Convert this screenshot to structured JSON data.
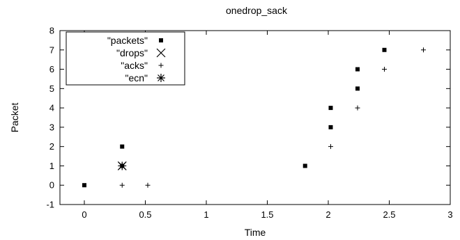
{
  "chart_data": {
    "type": "scatter",
    "title": "onedrop_sack",
    "xlabel": "Time",
    "ylabel": "Packet",
    "xlim": [
      -0.2,
      3
    ],
    "ylim": [
      -1,
      8
    ],
    "x_ticks": [
      0,
      0.5,
      1,
      1.5,
      2,
      2.5,
      3
    ],
    "x_tick_labels": [
      "0",
      "0.5",
      "1",
      "1.5",
      "2",
      "2.5",
      "3"
    ],
    "y_ticks": [
      -1,
      0,
      1,
      2,
      3,
      4,
      5,
      6,
      7,
      8
    ],
    "y_tick_labels": [
      "-1",
      "0",
      "1",
      "2",
      "3",
      "4",
      "5",
      "6",
      "7",
      "8"
    ],
    "grid": false,
    "legend_position": "top-left",
    "series": [
      {
        "name": "\"packets\"",
        "marker": "square",
        "color": "#000000",
        "points": [
          [
            0,
            0
          ],
          [
            0.31,
            1
          ],
          [
            0.31,
            2
          ],
          [
            1.81,
            1
          ],
          [
            2.02,
            3
          ],
          [
            2.02,
            4
          ],
          [
            2.24,
            5
          ],
          [
            2.24,
            6
          ],
          [
            2.46,
            7
          ]
        ]
      },
      {
        "name": "\"drops\"",
        "marker": "x",
        "color": "#000000",
        "points": [
          [
            0.31,
            1
          ]
        ]
      },
      {
        "name": "\"acks\"",
        "marker": "plus",
        "color": "#000000",
        "points": [
          [
            0.31,
            0
          ],
          [
            0.52,
            0
          ],
          [
            2.02,
            2
          ],
          [
            2.24,
            4
          ],
          [
            2.46,
            6
          ],
          [
            2.78,
            7
          ]
        ]
      },
      {
        "name": "\"ecn\"",
        "marker": "star",
        "color": "#000000",
        "points": [
          [
            0.31,
            1
          ]
        ]
      }
    ]
  }
}
